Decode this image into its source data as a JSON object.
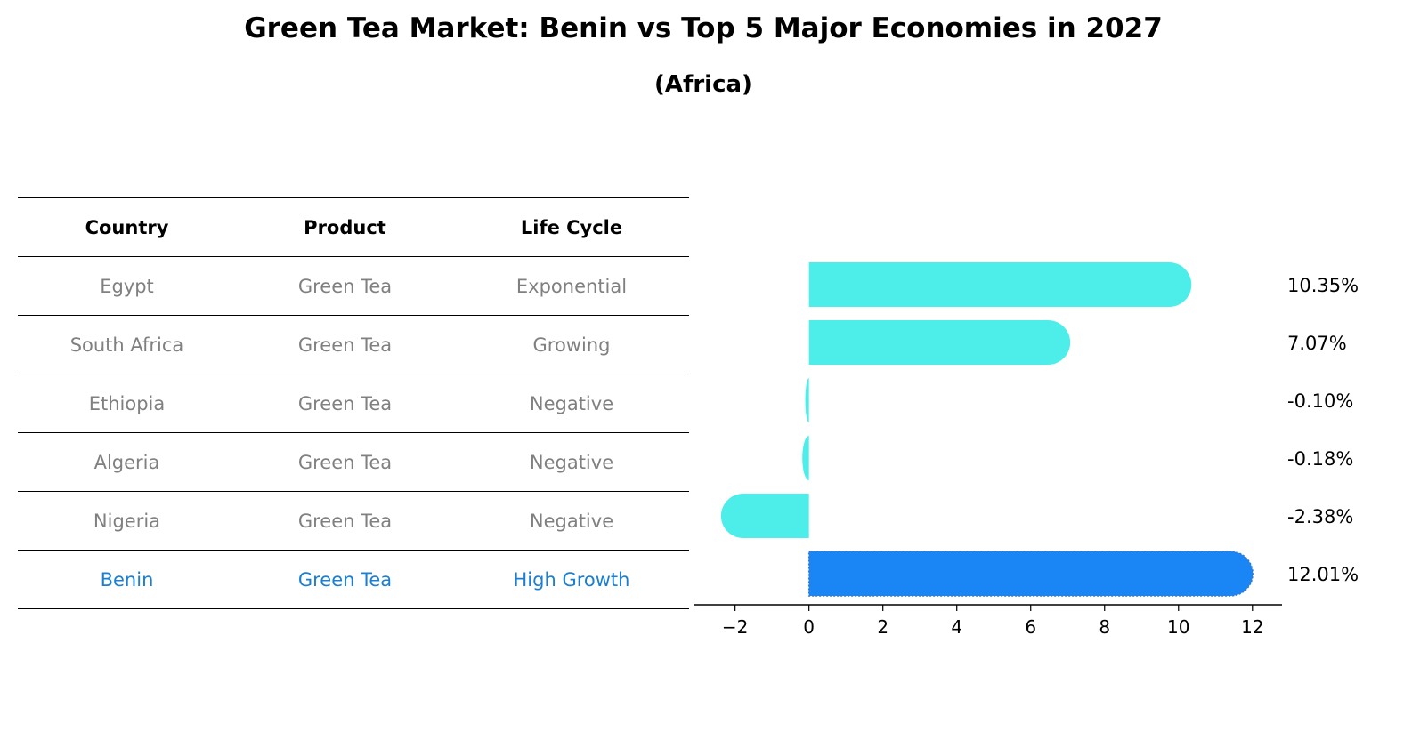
{
  "title": "Green Tea Market: Benin vs Top 5 Major Economies in 2027",
  "subtitle": "(Africa)",
  "table": {
    "headers": [
      "Country",
      "Product",
      "Life Cycle"
    ],
    "rows": [
      {
        "country": "Egypt",
        "product": "Green Tea",
        "life_cycle": "Exponential",
        "highlight": false
      },
      {
        "country": "South Africa",
        "product": "Green Tea",
        "life_cycle": "Growing",
        "highlight": false
      },
      {
        "country": "Ethiopia",
        "product": "Green Tea",
        "life_cycle": "Negative",
        "highlight": false
      },
      {
        "country": "Algeria",
        "product": "Green Tea",
        "life_cycle": "Negative",
        "highlight": false
      },
      {
        "country": "Nigeria",
        "product": "Green Tea",
        "life_cycle": "Negative",
        "highlight": false
      },
      {
        "country": "Benin",
        "product": "Green Tea",
        "life_cycle": "High Growth",
        "highlight": true
      }
    ]
  },
  "colors": {
    "bar": "#4deeea",
    "highlight_bar": "#1a85f5",
    "row_text": "#808080",
    "highlight_text": "#1a7fd4"
  },
  "chart_data": {
    "type": "bar",
    "orientation": "horizontal",
    "categories": [
      "Egypt",
      "South Africa",
      "Ethiopia",
      "Algeria",
      "Nigeria",
      "Benin"
    ],
    "values": [
      10.35,
      7.07,
      -0.1,
      -0.18,
      -2.38,
      12.01
    ],
    "data_labels": [
      "10.35%",
      "7.07%",
      "-0.10%",
      "-0.18%",
      "-2.38%",
      "12.01%"
    ],
    "highlight_index": 5,
    "xlim": [
      -3.1,
      12.8
    ],
    "xticks": [
      -2,
      0,
      2,
      4,
      6,
      8,
      10,
      12
    ],
    "xtick_labels": [
      "−2",
      "0",
      "2",
      "4",
      "6",
      "8",
      "10",
      "12"
    ],
    "grid": false
  }
}
